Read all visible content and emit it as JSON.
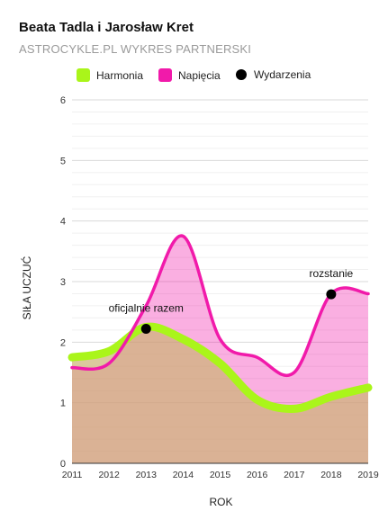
{
  "title": "Beata Tadla i Jarosław Kret",
  "subtitle": "ASTROCYKLE.PL WYKRES PARTNERSKI",
  "legend": [
    {
      "label": "Harmonia",
      "color": "#aaf51a",
      "shape": "square"
    },
    {
      "label": "Napięcia",
      "color": "#f11aaa",
      "shape": "square"
    },
    {
      "label": "Wydarzenia",
      "color": "#000000",
      "shape": "circle"
    }
  ],
  "chart_data": {
    "type": "area",
    "xlabel": "ROK",
    "ylabel": "SIŁA UCZUĆ",
    "xlim": [
      2011,
      2019
    ],
    "ylim": [
      0,
      6
    ],
    "x_ticks": [
      "2011",
      "2012",
      "2013",
      "2014",
      "2015",
      "2016",
      "2017",
      "2018",
      "2019"
    ],
    "y_ticks": [
      "0",
      "1",
      "2",
      "3",
      "4",
      "5",
      "6"
    ],
    "grid": true,
    "legend_position": "top",
    "series": [
      {
        "name": "Harmonia",
        "color": "#aaf51a",
        "x": [
          2011,
          2012,
          2013,
          2014,
          2015,
          2016,
          2017,
          2018,
          2019
        ],
        "values": [
          1.75,
          1.85,
          2.25,
          2.05,
          1.65,
          1.05,
          0.9,
          1.1,
          1.25
        ]
      },
      {
        "name": "Napięcia",
        "color": "#f11aaa",
        "x": [
          2011,
          2012,
          2013,
          2014,
          2015,
          2016,
          2017,
          2018,
          2019
        ],
        "values": [
          1.58,
          1.65,
          2.6,
          3.75,
          2.05,
          1.75,
          1.5,
          2.8,
          2.8
        ]
      }
    ],
    "events": [
      {
        "x": 2013,
        "y": 2.22,
        "label": "oficjalnie razem"
      },
      {
        "x": 2018,
        "y": 2.79,
        "label": "rozstanie"
      }
    ]
  }
}
